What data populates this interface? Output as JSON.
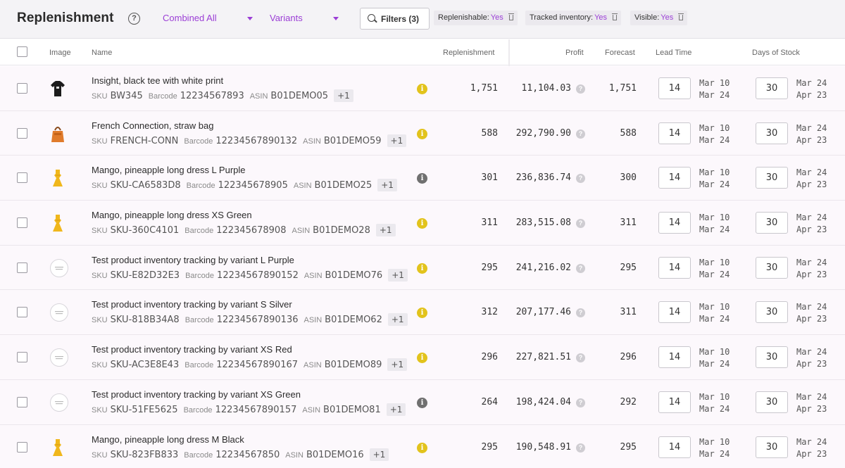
{
  "header": {
    "title": "Replenishment",
    "help_glyph": "?",
    "view_dropdown": "Combined All",
    "variants_dropdown": "Variants",
    "filters_button": "Filters (3)",
    "chips": [
      {
        "label": "Replenishable:",
        "value": "Yes"
      },
      {
        "label": "Tracked inventory:",
        "value": "Yes"
      },
      {
        "label": "Visible:",
        "value": "Yes"
      }
    ]
  },
  "columns": {
    "image": "Image",
    "name": "Name",
    "replenishment": "Replenishment",
    "profit": "Profit",
    "forecast": "Forecast",
    "lead_time": "Lead Time",
    "days_of_stock": "Days of Stock"
  },
  "labels": {
    "sku": "SKU",
    "barcode": "Barcode",
    "asin": "ASIN",
    "info_glyph": "i",
    "profit_help_glyph": "?"
  },
  "rows": [
    {
      "name": "Insight, black tee with white print",
      "sku": "BW345",
      "barcode": "12234567893",
      "asin": "B01DEMO05",
      "more": "+1",
      "info": "yellow",
      "replenishment": "1,751",
      "profit": "11,104.03",
      "forecast": "1,751",
      "lead_time": "14",
      "lead_dates": [
        "Mar 10",
        "Mar 24"
      ],
      "days_of_stock": "30",
      "stock_dates": [
        "Mar 24",
        "Apr 23"
      ],
      "thumb": "black-tee"
    },
    {
      "name": "French Connection, straw bag",
      "sku": "FRENCH-CONN",
      "barcode": "12234567890132",
      "asin": "B01DEMO59",
      "more": "+1",
      "info": "yellow",
      "replenishment": "588",
      "profit": "292,790.90",
      "forecast": "588",
      "lead_time": "14",
      "lead_dates": [
        "Mar 10",
        "Mar 24"
      ],
      "days_of_stock": "30",
      "stock_dates": [
        "Mar 24",
        "Apr 23"
      ],
      "thumb": "orange-bag"
    },
    {
      "name": "Mango, pineapple long dress L Purple",
      "sku": "SKU-CA6583D8",
      "barcode": "122345678905",
      "asin": "B01DEMO25",
      "more": "+1",
      "info": "grey",
      "replenishment": "301",
      "profit": "236,836.74",
      "forecast": "300",
      "lead_time": "14",
      "lead_dates": [
        "Mar 10",
        "Mar 24"
      ],
      "days_of_stock": "30",
      "stock_dates": [
        "Mar 24",
        "Apr 23"
      ],
      "thumb": "yellow-dress"
    },
    {
      "name": "Mango, pineapple long dress XS Green",
      "sku": "SKU-360C4101",
      "barcode": "122345678908",
      "asin": "B01DEMO28",
      "more": "+1",
      "info": "yellow",
      "replenishment": "311",
      "profit": "283,515.08",
      "forecast": "311",
      "lead_time": "14",
      "lead_dates": [
        "Mar 10",
        "Mar 24"
      ],
      "days_of_stock": "30",
      "stock_dates": [
        "Mar 24",
        "Apr 23"
      ],
      "thumb": "yellow-dress"
    },
    {
      "name": "Test product inventory tracking by variant L Purple",
      "sku": "SKU-E82D32E3",
      "barcode": "12234567890152",
      "asin": "B01DEMO76",
      "more": "+1",
      "info": "yellow",
      "replenishment": "295",
      "profit": "241,216.02",
      "forecast": "295",
      "lead_time": "14",
      "lead_dates": [
        "Mar 10",
        "Mar 24"
      ],
      "days_of_stock": "30",
      "stock_dates": [
        "Mar 24",
        "Apr 23"
      ],
      "thumb": "placeholder"
    },
    {
      "name": "Test product inventory tracking by variant S Silver",
      "sku": "SKU-818B34A8",
      "barcode": "12234567890136",
      "asin": "B01DEMO62",
      "more": "+1",
      "info": "yellow",
      "replenishment": "312",
      "profit": "207,177.46",
      "forecast": "311",
      "lead_time": "14",
      "lead_dates": [
        "Mar 10",
        "Mar 24"
      ],
      "days_of_stock": "30",
      "stock_dates": [
        "Mar 24",
        "Apr 23"
      ],
      "thumb": "placeholder"
    },
    {
      "name": "Test product inventory tracking by variant XS Red",
      "sku": "SKU-AC3E8E43",
      "barcode": "12234567890167",
      "asin": "B01DEMO89",
      "more": "+1",
      "info": "yellow",
      "replenishment": "296",
      "profit": "227,821.51",
      "forecast": "296",
      "lead_time": "14",
      "lead_dates": [
        "Mar 10",
        "Mar 24"
      ],
      "days_of_stock": "30",
      "stock_dates": [
        "Mar 24",
        "Apr 23"
      ],
      "thumb": "placeholder"
    },
    {
      "name": "Test product inventory tracking by variant XS Green",
      "sku": "SKU-51FE5625",
      "barcode": "12234567890157",
      "asin": "B01DEMO81",
      "more": "+1",
      "info": "grey",
      "replenishment": "264",
      "profit": "198,424.04",
      "forecast": "292",
      "lead_time": "14",
      "lead_dates": [
        "Mar 10",
        "Mar 24"
      ],
      "days_of_stock": "30",
      "stock_dates": [
        "Mar 24",
        "Apr 23"
      ],
      "thumb": "placeholder"
    },
    {
      "name": "Mango, pineapple long dress M Black",
      "sku": "SKU-823FB833",
      "barcode": "12234567850",
      "asin": "B01DEMO16",
      "more": "+1",
      "info": "yellow",
      "replenishment": "295",
      "profit": "190,548.91",
      "forecast": "295",
      "lead_time": "14",
      "lead_dates": [
        "Mar 10",
        "Mar 24"
      ],
      "days_of_stock": "30",
      "stock_dates": [
        "Mar 24",
        "Apr 23"
      ],
      "thumb": "yellow-dress"
    }
  ]
}
